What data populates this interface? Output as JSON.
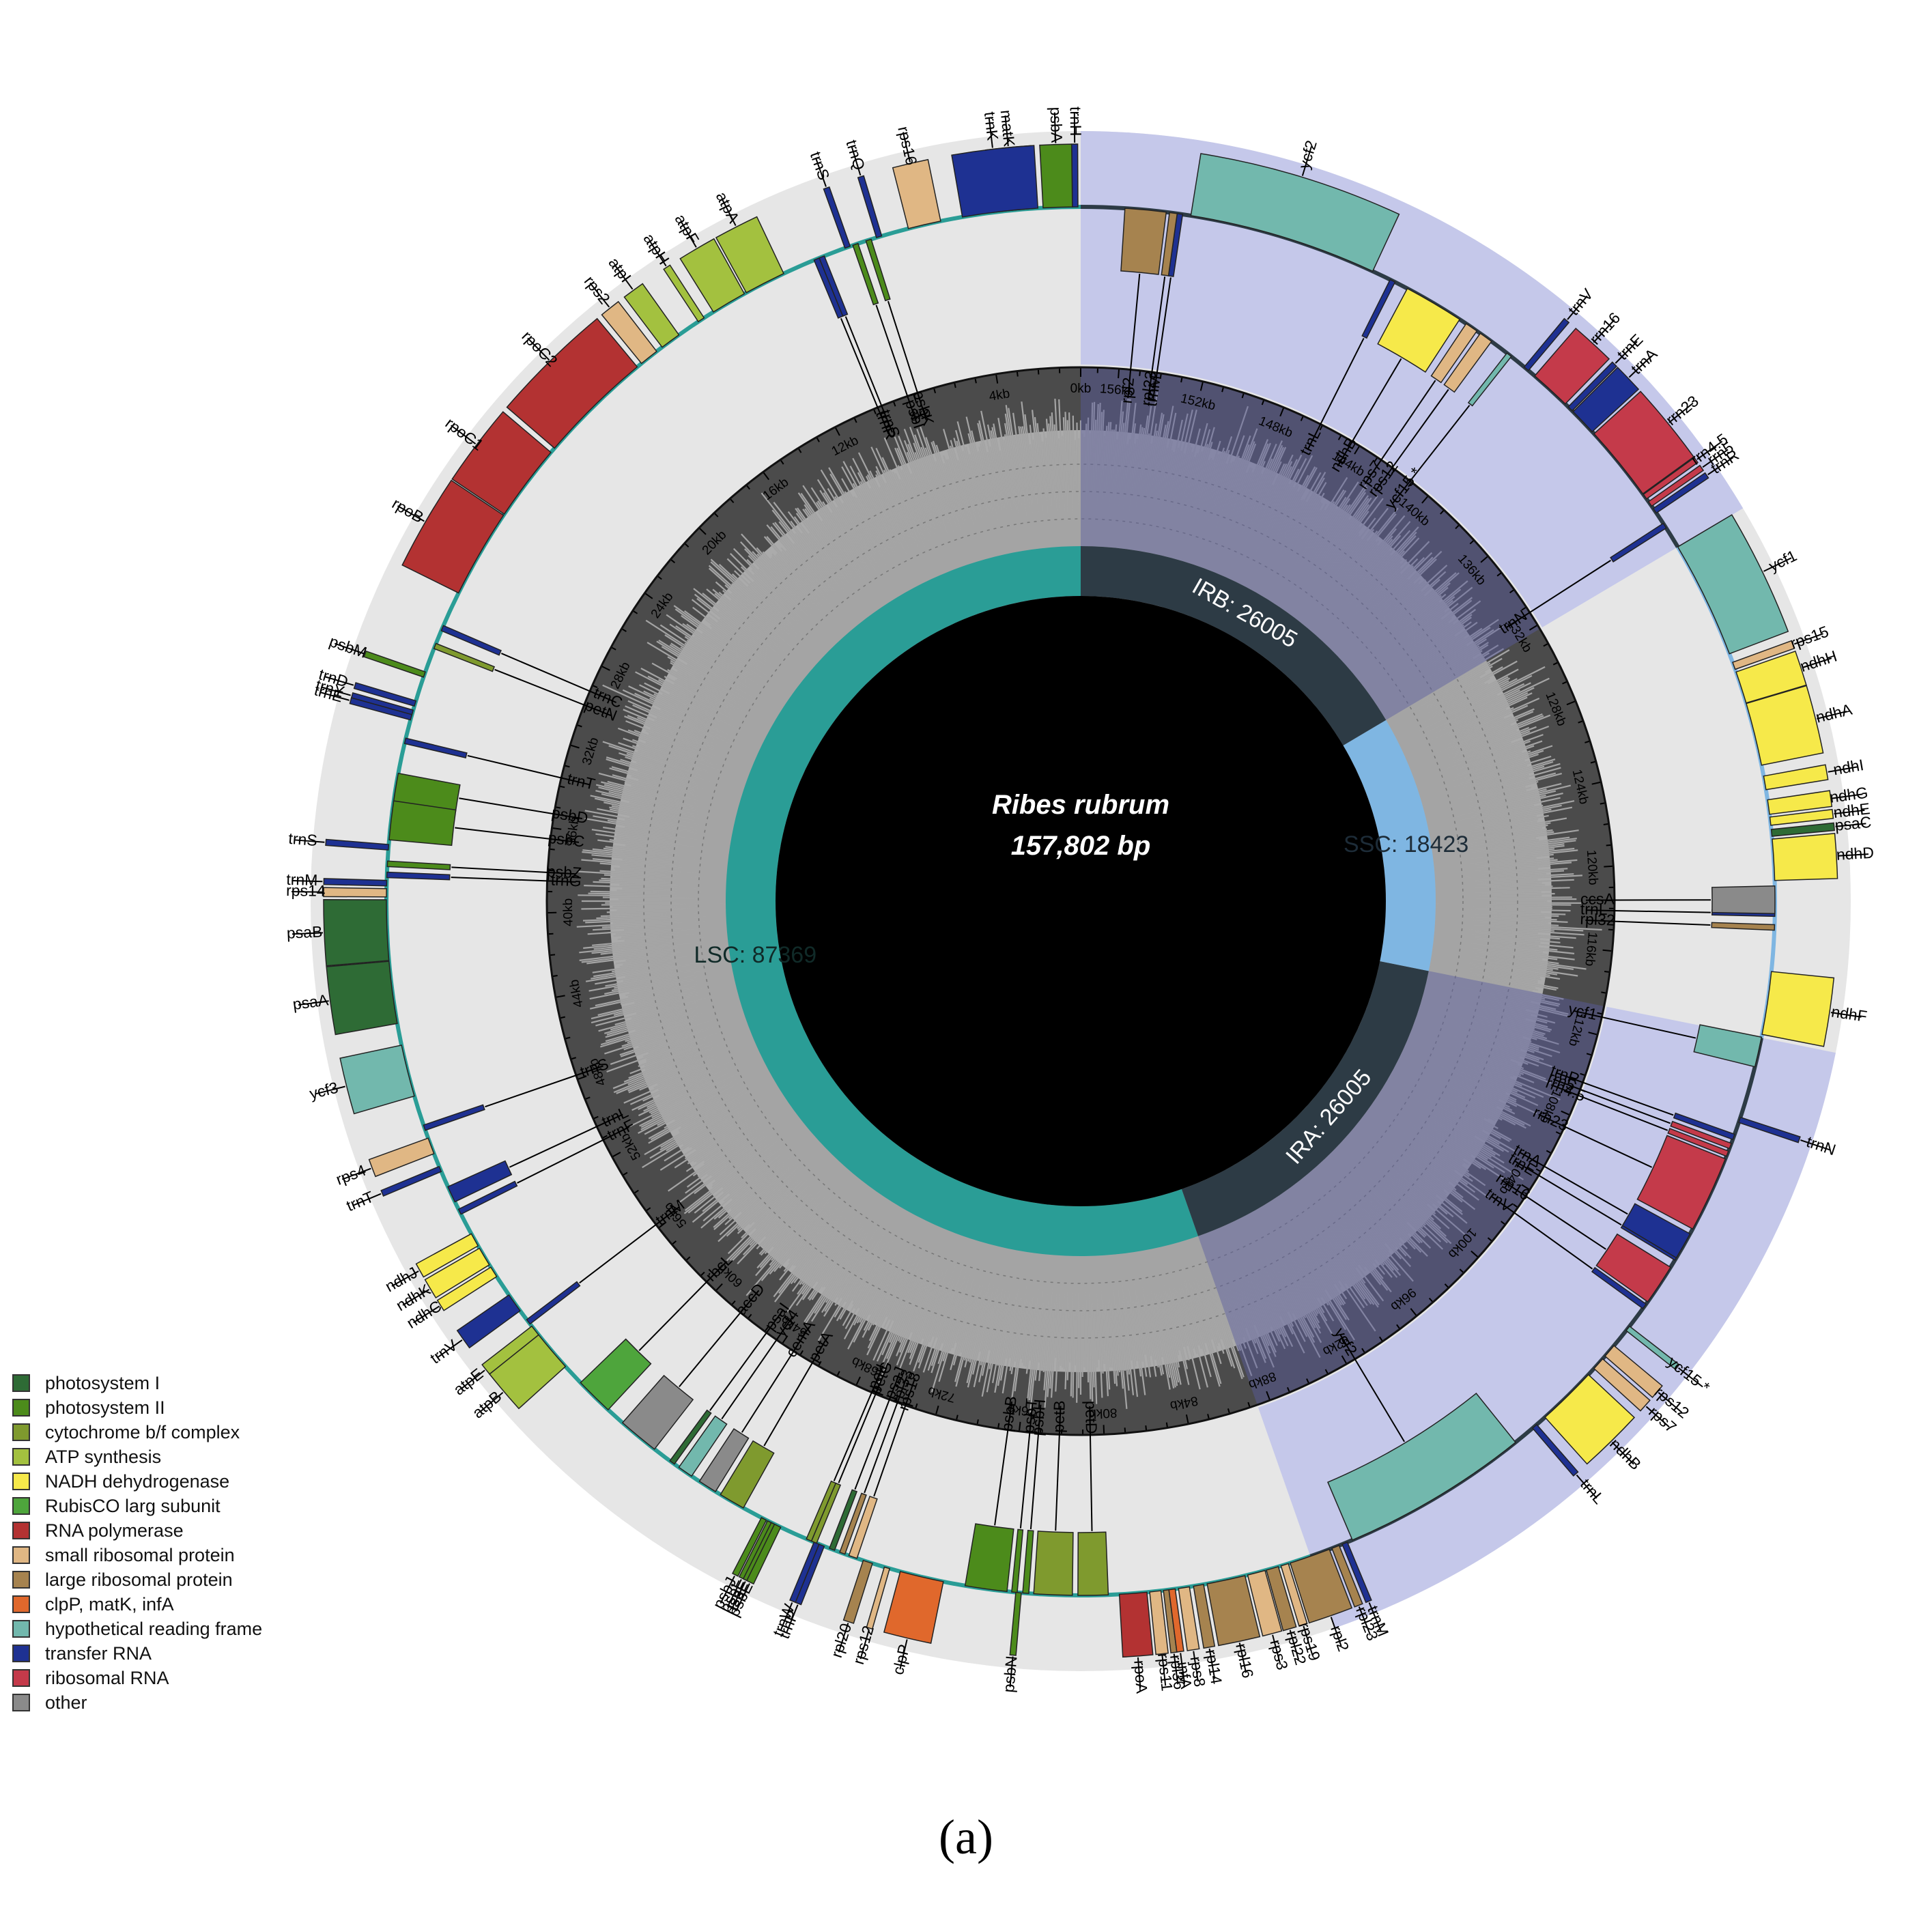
{
  "figure": {
    "species": "Ribes rubrum",
    "length_label": "157,802 bp",
    "panel_label": "(a)",
    "genome_length": 157802
  },
  "regions": [
    {
      "name": "LSC",
      "label": "LSC: 87369",
      "start": 0,
      "end": 87369,
      "color": "#2a9d96"
    },
    {
      "name": "IRA",
      "label": "IRA: 26005",
      "start": 87369,
      "end": 113374,
      "color": "#2d3b45"
    },
    {
      "name": "SSC",
      "label": "SSC: 18423",
      "start": 113374,
      "end": 131797,
      "color": "#7fb6e2"
    },
    {
      "name": "IRB",
      "label": "IRB: 26005",
      "start": 131797,
      "end": 157802,
      "color": "#2d3b45"
    }
  ],
  "scale_labels": [
    "0kb",
    "4kb",
    "8kb",
    "12kb",
    "16kb",
    "20kb",
    "24kb",
    "28kb",
    "32kb",
    "36kb",
    "40kb",
    "44kb",
    "48kb",
    "52kb",
    "56kb",
    "60kb",
    "64kb",
    "68kb",
    "72kb",
    "76kb",
    "80kb",
    "84kb",
    "88kb",
    "92kb",
    "96kb",
    "100kb",
    "104kb",
    "108kb",
    "112kb",
    "116kb",
    "120kb",
    "124kb",
    "128kb",
    "132kb",
    "136kb",
    "140kb",
    "144kb",
    "148kb",
    "152kb",
    "156kb"
  ],
  "legend": [
    {
      "label": "photosystem I",
      "color": "#2e6b35"
    },
    {
      "label": "photosystem II",
      "color": "#4c8b1b"
    },
    {
      "label": "cytochrome b/f complex",
      "color": "#7f9a2e"
    },
    {
      "label": "ATP synthesis",
      "color": "#a3c13f"
    },
    {
      "label": "NADH dehydrogenase",
      "color": "#f6e94a"
    },
    {
      "label": "RubisCO larg subunit",
      "color": "#4ea53c"
    },
    {
      "label": "RNA polymerase",
      "color": "#b33232"
    },
    {
      "label": "small ribosomal protein",
      "color": "#e0b784"
    },
    {
      "label": "large ribosomal protein",
      "color": "#a6834f"
    },
    {
      "label": "clpP, matK, infA",
      "color": "#e0682c"
    },
    {
      "label": "hypothetical reading frame",
      "color": "#72b8ad"
    },
    {
      "label": "transfer RNA",
      "color": "#1e3192"
    },
    {
      "label": "ribosomal RNA",
      "color": "#c43a4a"
    },
    {
      "label": "other",
      "color": "#8a8a8a"
    }
  ],
  "genes": [
    {
      "name": "trnH",
      "start": 100,
      "end": 170,
      "strand": "-",
      "cat": "transfer RNA"
    },
    {
      "name": "psbA",
      "start": 300,
      "end": 1360,
      "strand": "-",
      "cat": "photosystem II"
    },
    {
      "name": "matK",
      "start": 1650,
      "end": 3160,
      "strand": "-",
      "cat": "clpP, matK, infA"
    },
    {
      "name": "trnK",
      "start": 1550,
      "end": 4300,
      "strand": "-",
      "cat": "transfer RNA"
    },
    {
      "name": "rps16",
      "start": 5100,
      "end": 6300,
      "strand": "-",
      "cat": "small ribosomal protein"
    },
    {
      "name": "trnQ",
      "start": 7300,
      "end": 7380,
      "strand": "-",
      "cat": "transfer RNA"
    },
    {
      "name": "psbK",
      "start": 7700,
      "end": 7900,
      "strand": "+",
      "cat": "photosystem II"
    },
    {
      "name": "psbI",
      "start": 8200,
      "end": 8330,
      "strand": "+",
      "cat": "photosystem II"
    },
    {
      "name": "trnS",
      "start": 8500,
      "end": 8590,
      "strand": "-",
      "cat": "transfer RNA"
    },
    {
      "name": "trnS",
      "start": 9500,
      "end": 9590,
      "strand": "+",
      "cat": "transfer RNA"
    },
    {
      "name": "trnR",
      "start": 9700,
      "end": 9775,
      "strand": "+",
      "cat": "transfer RNA"
    },
    {
      "name": "atpA",
      "start": 11100,
      "end": 12620,
      "strand": "-",
      "cat": "ATP synthesis"
    },
    {
      "name": "atpF",
      "start": 12700,
      "end": 14000,
      "strand": "-",
      "cat": "ATP synthesis"
    },
    {
      "name": "atpH",
      "start": 14400,
      "end": 14650,
      "strand": "-",
      "cat": "ATP synthesis"
    },
    {
      "name": "atpI",
      "start": 15500,
      "end": 16250,
      "strand": "-",
      "cat": "ATP synthesis"
    },
    {
      "name": "rps2",
      "start": 16500,
      "end": 17200,
      "strand": "-",
      "cat": "small ribosomal protein"
    },
    {
      "name": "rpoC2",
      "start": 17400,
      "end": 21600,
      "strand": "-",
      "cat": "RNA polymerase"
    },
    {
      "name": "rpoC1",
      "start": 21800,
      "end": 24600,
      "strand": "-",
      "cat": "RNA polymerase"
    },
    {
      "name": "rpoB",
      "start": 24650,
      "end": 27900,
      "strand": "-",
      "cat": "RNA polymerase"
    },
    {
      "name": "trnC",
      "start": 29200,
      "end": 29280,
      "strand": "+",
      "cat": "transfer RNA"
    },
    {
      "name": "petN",
      "start": 29900,
      "end": 30000,
      "strand": "+",
      "cat": "cytochrome b/f complex"
    },
    {
      "name": "psbM",
      "start": 31000,
      "end": 31100,
      "strand": "-",
      "cat": "photosystem II"
    },
    {
      "name": "trnD",
      "start": 32100,
      "end": 32180,
      "strand": "-",
      "cat": "transfer RNA"
    },
    {
      "name": "trnY",
      "start": 32450,
      "end": 32540,
      "strand": "-",
      "cat": "transfer RNA"
    },
    {
      "name": "trnE",
      "start": 32620,
      "end": 32700,
      "strand": "-",
      "cat": "transfer RNA"
    },
    {
      "name": "trnT",
      "start": 33500,
      "end": 33580,
      "strand": "+",
      "cat": "transfer RNA"
    },
    {
      "name": "psbD",
      "start": 34800,
      "end": 35860,
      "strand": "+",
      "cat": "photosystem II"
    },
    {
      "name": "psbC",
      "start": 35810,
      "end": 37230,
      "strand": "+",
      "cat": "photosystem II"
    },
    {
      "name": "trnS",
      "start": 37400,
      "end": 37490,
      "strand": "-",
      "cat": "transfer RNA"
    },
    {
      "name": "psbZ",
      "start": 38000,
      "end": 38200,
      "strand": "+",
      "cat": "photosystem II"
    },
    {
      "name": "trnG",
      "start": 38400,
      "end": 38480,
      "strand": "+",
      "cat": "transfer RNA"
    },
    {
      "name": "trnM",
      "start": 38700,
      "end": 38780,
      "strand": "-",
      "cat": "transfer RNA"
    },
    {
      "name": "rps14",
      "start": 39000,
      "end": 39300,
      "strand": "-",
      "cat": "small ribosomal protein"
    },
    {
      "name": "psaB",
      "start": 39400,
      "end": 41600,
      "strand": "-",
      "cat": "photosystem I"
    },
    {
      "name": "psaA",
      "start": 41630,
      "end": 43900,
      "strand": "-",
      "cat": "photosystem I"
    },
    {
      "name": "ycf3",
      "start": 44700,
      "end": 46600,
      "strand": "-",
      "cat": "hypothetical reading frame"
    },
    {
      "name": "trnS",
      "start": 47700,
      "end": 47790,
      "strand": "+",
      "cat": "transfer RNA"
    },
    {
      "name": "rps4",
      "start": 48200,
      "end": 48800,
      "strand": "-",
      "cat": "small ribosomal protein"
    },
    {
      "name": "trnT",
      "start": 49300,
      "end": 49380,
      "strand": "-",
      "cat": "transfer RNA"
    },
    {
      "name": "trnL",
      "start": 50100,
      "end": 50700,
      "strand": "+",
      "cat": "transfer RNA"
    },
    {
      "name": "trnF",
      "start": 51000,
      "end": 51080,
      "strand": "+",
      "cat": "transfer RNA"
    },
    {
      "name": "ndhJ",
      "start": 52000,
      "end": 52500,
      "strand": "-",
      "cat": "NADH dehydrogenase"
    },
    {
      "name": "ndhK",
      "start": 52600,
      "end": 53300,
      "strand": "-",
      "cat": "NADH dehydrogenase"
    },
    {
      "name": "ndhC",
      "start": 53400,
      "end": 53800,
      "strand": "-",
      "cat": "NADH dehydrogenase"
    },
    {
      "name": "trnV",
      "start": 54600,
      "end": 55300,
      "strand": "-",
      "cat": "transfer RNA"
    },
    {
      "name": "trnM",
      "start": 55700,
      "end": 55780,
      "strand": "+",
      "cat": "transfer RNA"
    },
    {
      "name": "atpE",
      "start": 56000,
      "end": 56400,
      "strand": "-",
      "cat": "ATP synthesis"
    },
    {
      "name": "atpB",
      "start": 56400,
      "end": 57900,
      "strand": "-",
      "cat": "ATP synthesis"
    },
    {
      "name": "rbcL",
      "start": 58700,
      "end": 60100,
      "strand": "+",
      "cat": "RubisCO larg subunit"
    },
    {
      "name": "accD",
      "start": 60800,
      "end": 62300,
      "strand": "+",
      "cat": "other"
    },
    {
      "name": "psaI",
      "start": 63000,
      "end": 63120,
      "strand": "+",
      "cat": "photosystem I"
    },
    {
      "name": "ycf4",
      "start": 63400,
      "end": 63960,
      "strand": "+",
      "cat": "hypothetical reading frame"
    },
    {
      "name": "cemA",
      "start": 64300,
      "end": 64990,
      "strand": "+",
      "cat": "other"
    },
    {
      "name": "petA",
      "start": 65200,
      "end": 66160,
      "strand": "+",
      "cat": "cytochrome b/f complex"
    },
    {
      "name": "psbJ",
      "start": 66900,
      "end": 67020,
      "strand": "-",
      "cat": "photosystem II"
    },
    {
      "name": "psbL",
      "start": 67150,
      "end": 67270,
      "strand": "-",
      "cat": "photosystem II"
    },
    {
      "name": "psbF",
      "start": 67300,
      "end": 67420,
      "strand": "-",
      "cat": "photosystem II"
    },
    {
      "name": "psbE",
      "start": 67430,
      "end": 67680,
      "strand": "-",
      "cat": "photosystem II"
    },
    {
      "name": "trnW",
      "start": 69000,
      "end": 69080,
      "strand": "-",
      "cat": "transfer RNA"
    },
    {
      "name": "trnP",
      "start": 69200,
      "end": 69280,
      "strand": "-",
      "cat": "transfer RNA"
    },
    {
      "name": "petL",
      "start": 68700,
      "end": 68800,
      "strand": "+",
      "cat": "cytochrome b/f complex"
    },
    {
      "name": "petG",
      "start": 68900,
      "end": 69010,
      "strand": "+",
      "cat": "cytochrome b/f complex"
    },
    {
      "name": "psaJ",
      "start": 69600,
      "end": 69730,
      "strand": "+",
      "cat": "photosystem I"
    },
    {
      "name": "rpl33",
      "start": 70000,
      "end": 70200,
      "strand": "+",
      "cat": "large ribosomal protein"
    },
    {
      "name": "rps18",
      "start": 70350,
      "end": 70660,
      "strand": "+",
      "cat": "small ribosomal protein"
    },
    {
      "name": "rpl20",
      "start": 70900,
      "end": 71250,
      "strand": "-",
      "cat": "large ribosomal protein"
    },
    {
      "name": "rps12",
      "start": 71700,
      "end": 71820,
      "strand": "-",
      "cat": "small ribosomal protein"
    },
    {
      "name": "clpP",
      "start": 72300,
      "end": 73900,
      "strand": "-",
      "cat": "clpP, matK, infA"
    },
    {
      "name": "psbB",
      "start": 74700,
      "end": 76230,
      "strand": "+",
      "cat": "photosystem II"
    },
    {
      "name": "psbT",
      "start": 76400,
      "end": 76500,
      "strand": "+",
      "cat": "photosystem II"
    },
    {
      "name": "psbN",
      "start": 76550,
      "end": 76680,
      "strand": "-",
      "cat": "photosystem II"
    },
    {
      "name": "psbH",
      "start": 76800,
      "end": 77020,
      "strand": "+",
      "cat": "photosystem II"
    },
    {
      "name": "petB",
      "start": 77200,
      "end": 78600,
      "strand": "+",
      "cat": "cytochrome b/f complex"
    },
    {
      "name": "petD",
      "start": 78800,
      "end": 79900,
      "strand": "+",
      "cat": "cytochrome b/f complex"
    },
    {
      "name": "rpoA",
      "start": 80300,
      "end": 81300,
      "strand": "-",
      "cat": "RNA polymerase"
    },
    {
      "name": "rps11",
      "start": 81400,
      "end": 81810,
      "strand": "-",
      "cat": "small ribosomal protein"
    },
    {
      "name": "rpl36",
      "start": 81900,
      "end": 82015,
      "strand": "-",
      "cat": "large ribosomal protein"
    },
    {
      "name": "infA",
      "start": 82100,
      "end": 82330,
      "strand": "-",
      "cat": "clpP, matK, infA"
    },
    {
      "name": "rps8",
      "start": 82450,
      "end": 82850,
      "strand": "-",
      "cat": "small ribosomal protein"
    },
    {
      "name": "rpl14",
      "start": 83000,
      "end": 83370,
      "strand": "-",
      "cat": "large ribosomal protein"
    },
    {
      "name": "rpl16",
      "start": 83500,
      "end": 84900,
      "strand": "-",
      "cat": "large ribosomal protein"
    },
    {
      "name": "rps3",
      "start": 85000,
      "end": 85650,
      "strand": "-",
      "cat": "small ribosomal protein"
    },
    {
      "name": "rpl22",
      "start": 85700,
      "end": 86150,
      "strand": "-",
      "cat": "large ribosomal protein"
    },
    {
      "name": "rps19",
      "start": 86250,
      "end": 86530,
      "strand": "-",
      "cat": "small ribosomal protein"
    },
    {
      "name": "rpl2",
      "start": 86600,
      "end": 88100,
      "strand": "-",
      "cat": "large ribosomal protein"
    },
    {
      "name": "rpl23",
      "start": 88200,
      "end": 88480,
      "strand": "-",
      "cat": "large ribosomal protein"
    },
    {
      "name": "trnM",
      "start": 88600,
      "end": 88680,
      "strand": "-",
      "cat": "transfer RNA"
    },
    {
      "name": "ycf2",
      "start": 89000,
      "end": 95900,
      "strand": "+",
      "cat": "hypothetical reading frame"
    },
    {
      "name": "trnL",
      "start": 96700,
      "end": 96780,
      "strand": "-",
      "cat": "transfer RNA"
    },
    {
      "name": "ndhB",
      "start": 97300,
      "end": 99500,
      "strand": "-",
      "cat": "NADH dehydrogenase"
    },
    {
      "name": "rps7",
      "start": 99800,
      "end": 100270,
      "strand": "-",
      "cat": "small ribosomal protein"
    },
    {
      "name": "rps12",
      "start": 100400,
      "end": 100900,
      "strand": "-",
      "cat": "small ribosomal protein"
    },
    {
      "name": "ycf15 *",
      "start": 101600,
      "end": 101800,
      "strand": "-",
      "cat": "hypothetical reading frame"
    },
    {
      "name": "trnV",
      "start": 102600,
      "end": 102670,
      "strand": "+",
      "cat": "transfer RNA"
    },
    {
      "name": "rrn16",
      "start": 102900,
      "end": 104400,
      "strand": "+",
      "cat": "ribosomal RNA"
    },
    {
      "name": "trnE",
      "start": 104700,
      "end": 104780,
      "strand": "+",
      "cat": "transfer RNA"
    },
    {
      "name": "trnA",
      "start": 104800,
      "end": 105800,
      "strand": "+",
      "cat": "transfer RNA"
    },
    {
      "name": "rrn23",
      "start": 106000,
      "end": 108800,
      "strand": "+",
      "cat": "ribosomal RNA"
    },
    {
      "name": "rrn4.5",
      "start": 108900,
      "end": 109000,
      "strand": "+",
      "cat": "ribosomal RNA"
    },
    {
      "name": "rrn5",
      "start": 109200,
      "end": 109320,
      "strand": "+",
      "cat": "ribosomal RNA"
    },
    {
      "name": "trnR",
      "start": 109550,
      "end": 109620,
      "strand": "+",
      "cat": "transfer RNA"
    },
    {
      "name": "trnN",
      "start": 110200,
      "end": 110270,
      "strand": "-",
      "cat": "transfer RNA"
    },
    {
      "name": "ycf1",
      "start": 112300,
      "end": 113400,
      "strand": "+",
      "cat": "hypothetical reading frame"
    },
    {
      "name": "ndhF",
      "start": 113500,
      "end": 115800,
      "strand": "-",
      "cat": "NADH dehydrogenase"
    },
    {
      "name": "rpl32",
      "start": 117300,
      "end": 117470,
      "strand": "+",
      "cat": "large ribosomal protein"
    },
    {
      "name": "trnL",
      "start": 117800,
      "end": 117880,
      "strand": "+",
      "cat": "transfer RNA"
    },
    {
      "name": "ccsA",
      "start": 117900,
      "end": 118900,
      "strand": "+",
      "cat": "other"
    },
    {
      "name": "ndhD",
      "start": 119100,
      "end": 120600,
      "strand": "-",
      "cat": "NADH dehydrogenase"
    },
    {
      "name": "psaC",
      "start": 120700,
      "end": 120950,
      "strand": "-",
      "cat": "photosystem I"
    },
    {
      "name": "ndhE",
      "start": 121100,
      "end": 121400,
      "strand": "-",
      "cat": "NADH dehydrogenase"
    },
    {
      "name": "ndhG",
      "start": 121500,
      "end": 122030,
      "strand": "-",
      "cat": "NADH dehydrogenase"
    },
    {
      "name": "ndhI",
      "start": 122400,
      "end": 122900,
      "strand": "-",
      "cat": "NADH dehydrogenase"
    },
    {
      "name": "ndhA",
      "start": 123300,
      "end": 125600,
      "strand": "-",
      "cat": "NADH dehydrogenase"
    },
    {
      "name": "ndhH",
      "start": 125620,
      "end": 126800,
      "strand": "-",
      "cat": "NADH dehydrogenase"
    },
    {
      "name": "rps15",
      "start": 126900,
      "end": 127170,
      "strand": "-",
      "cat": "small ribosomal protein"
    },
    {
      "name": "ycf1",
      "start": 127500,
      "end": 131800,
      "strand": "-",
      "cat": "hypothetical reading frame"
    },
    {
      "name": "trnN",
      "start": 132600,
      "end": 132670,
      "strand": "+",
      "cat": "transfer RNA"
    },
    {
      "name": "trnR",
      "start": 133250,
      "end": 133320,
      "strand": "-",
      "cat": "transfer RNA"
    },
    {
      "name": "rrn5",
      "start": 133550,
      "end": 133670,
      "strand": "-",
      "cat": "ribosomal RNA"
    },
    {
      "name": "rrn4.5",
      "start": 133870,
      "end": 133970,
      "strand": "-",
      "cat": "ribosomal RNA"
    },
    {
      "name": "rrn23",
      "start": 134100,
      "end": 136900,
      "strand": "-",
      "cat": "ribosomal RNA"
    },
    {
      "name": "trnA",
      "start": 137000,
      "end": 138000,
      "strand": "-",
      "cat": "transfer RNA"
    },
    {
      "name": "trnE",
      "start": 138050,
      "end": 138130,
      "strand": "-",
      "cat": "transfer RNA"
    },
    {
      "name": "rrn16",
      "start": 138400,
      "end": 139900,
      "strand": "-",
      "cat": "ribosomal RNA"
    },
    {
      "name": "trnV",
      "start": 140200,
      "end": 140270,
      "strand": "-",
      "cat": "transfer RNA"
    },
    {
      "name": "ycf15 *",
      "start": 141000,
      "end": 141200,
      "strand": "+",
      "cat": "hypothetical reading frame"
    },
    {
      "name": "rps12",
      "start": 141900,
      "end": 142400,
      "strand": "+",
      "cat": "small ribosomal protein"
    },
    {
      "name": "rps7",
      "start": 142550,
      "end": 143020,
      "strand": "+",
      "cat": "small ribosomal protein"
    },
    {
      "name": "ndhB",
      "start": 143300,
      "end": 145500,
      "strand": "+",
      "cat": "NADH dehydrogenase"
    },
    {
      "name": "trnL",
      "start": 146000,
      "end": 146080,
      "strand": "+",
      "cat": "transfer RNA"
    },
    {
      "name": "ycf2",
      "start": 146900,
      "end": 153800,
      "strand": "-",
      "cat": "hypothetical reading frame"
    },
    {
      "name": "trnM",
      "start": 154100,
      "end": 154180,
      "strand": "+",
      "cat": "transfer RNA"
    },
    {
      "name": "rpl23",
      "start": 154300,
      "end": 154580,
      "strand": "+",
      "cat": "large ribosomal protein"
    },
    {
      "name": "rpl2",
      "start": 154700,
      "end": 156200,
      "strand": "+",
      "cat": "large ribosomal protein"
    }
  ]
}
